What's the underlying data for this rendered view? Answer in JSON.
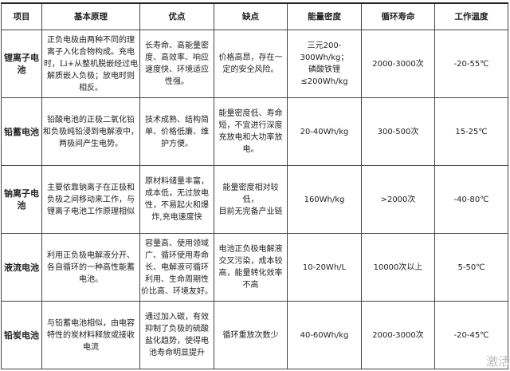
{
  "headers": [
    "项目",
    "基本原理",
    "优点",
    "缺点",
    "能量密度",
    "循环寿命",
    "工作温度"
  ],
  "rows": [
    {
      "name": "锂离子电\n池",
      "principle": "正负电极由两种不同的理\n离子入化合物构成。充电\n时，Li+从整机脱嵌经过电\n解质嵌入负极；放电时则\n相反。",
      "pros": "长寿命、高能量密\n度、高效率、响应\n速度快、环境适应\n性强。",
      "cons": "价格高昂，存在一\n定的安全风险。",
      "density": "三元200-300Wh/kg；\n磷酸铁锂\n≤200Wh/kg",
      "cycle": "2000-3000次",
      "temp": "-20-55℃"
    },
    {
      "name": "铅蓄电池",
      "principle": "铅酸电池的正极二氧化铅\n和负极纯铅浸到电解液中，\n两极间产生电势。",
      "pros": "技术成熟、结构简\n单、价格低廉、维\n护方便。",
      "cons": "能量密度低、寿命\n短，不宜进行深度\n充放电和大功率放\n电。",
      "density": "20-40Wh/kg",
      "cycle": "300-500次",
      "temp": "15-25℃"
    },
    {
      "name": "钠离子电\n池",
      "principle": "主要依靠钠离子在正极和\n负极之间移动来工作，与\n锂离子电池工作原理相似",
      "pros": "原材料储量丰富，\n成本低，无过放电\n性，不易起火和爆\n炸,充电速度快",
      "cons": "能量密度相对较低，\n目前无完备产业链",
      "density": "160Wh/kg",
      "cycle": ">2000次",
      "temp": "-40-80℃"
    },
    {
      "name": "液流电池",
      "principle": "利用正负极电解液分开、\n各自循环的一种高性能蓄\n电池。",
      "pros": "容量高、使用领域\n广、循环使用寿命\n长、电解液可循环\n利用、生命周期性\n价比高、环境友好。",
      "cons": "电池正负极电解液\n交叉污染，成本较\n高，能量转化效率\n不高",
      "density": "10-20Wh/L",
      "cycle": "10000次以上",
      "temp": "5-50℃"
    },
    {
      "name": "铅炭电池",
      "principle": "与铅蓄电池相似，由电容\n特性的炭材料释放或接收\n电流",
      "pros": "通过加入碳，有效\n抑制了负极的硫酸\n盐化趋势，使得电\n池寿命明显提升",
      "cons": "循环重放次数少",
      "density": "40-60Wh/kg",
      "cycle": "2000-3000次",
      "temp": "-20-45℃"
    }
  ],
  "watermark": "激活"
}
